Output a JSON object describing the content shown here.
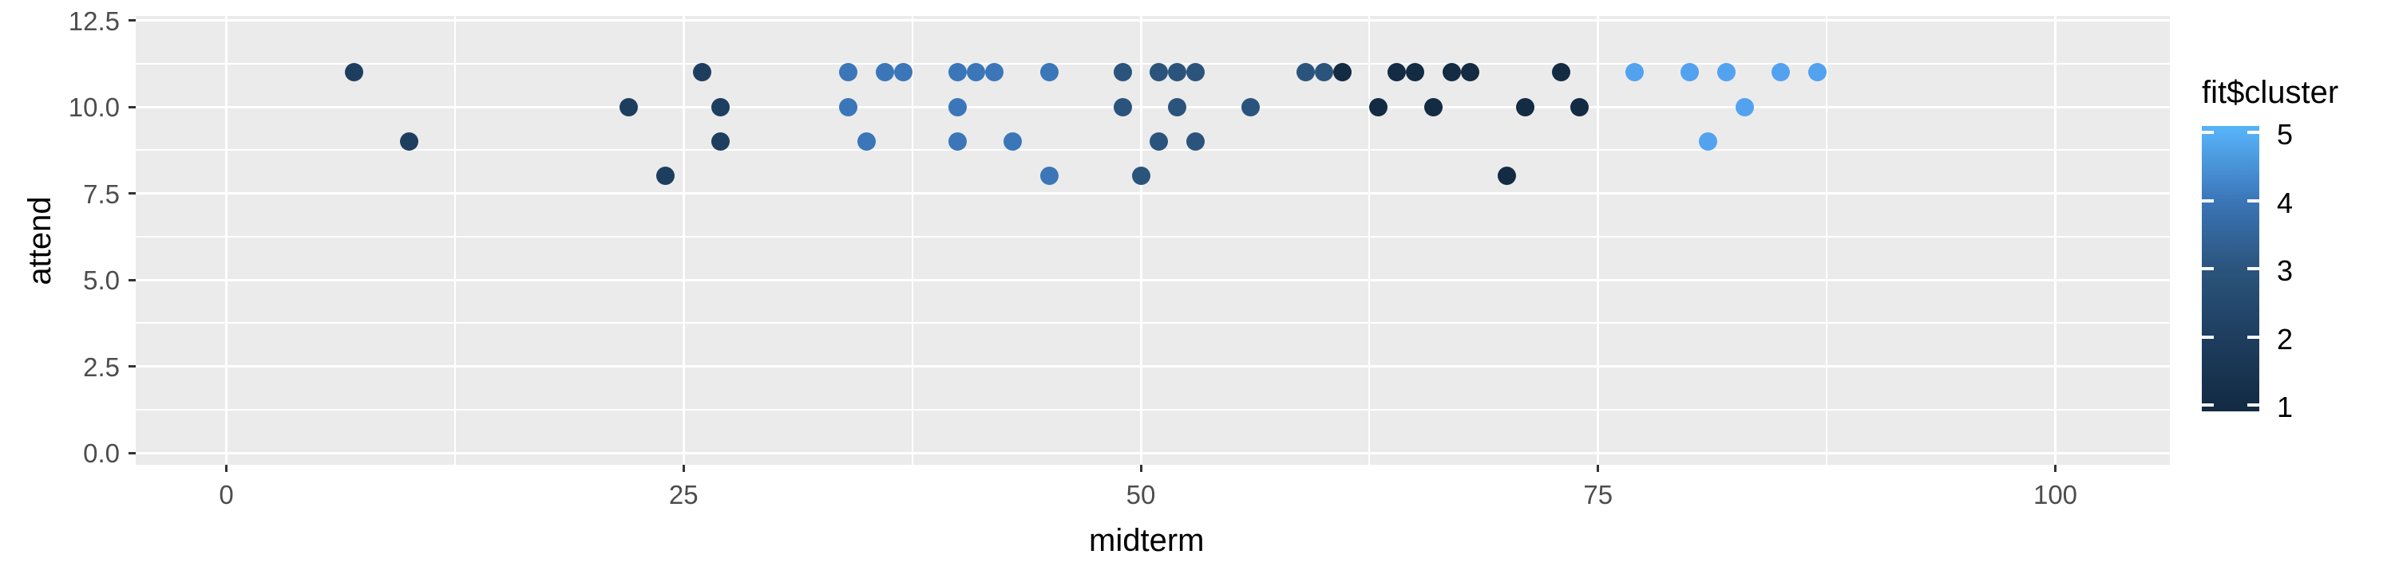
{
  "chart_data": {
    "type": "scatter",
    "title": "",
    "xlabel": "midterm",
    "ylabel": "attend",
    "x_tick_labels": [
      "0",
      "25",
      "50",
      "75",
      "100"
    ],
    "x_tick_values": [
      0,
      25,
      50,
      75,
      100
    ],
    "x_minor_values": [
      12.5,
      37.5,
      62.5,
      87.5
    ],
    "y_tick_labels": [
      "0.0",
      "2.5",
      "5.0",
      "7.5",
      "10.0",
      "12.5"
    ],
    "y_tick_values": [
      0,
      2.5,
      5,
      7.5,
      10,
      12.5
    ],
    "y_minor_values": [
      1.25,
      3.75,
      6.25,
      8.75,
      11.25
    ],
    "xlim": [
      -5,
      106.3
    ],
    "ylim": [
      -0.35,
      12.63
    ],
    "grid": "on",
    "panel_background": "#EBEBEB",
    "gridline_color": "#ffffff",
    "legend_position": "right",
    "series": [
      {
        "name": "cluster-1",
        "cluster_value": 1,
        "color": "#132B43",
        "points": [
          [
            61,
            11
          ],
          [
            64,
            11
          ],
          [
            65,
            11
          ],
          [
            67,
            11
          ],
          [
            68,
            11
          ],
          [
            73,
            11
          ],
          [
            63,
            10
          ],
          [
            66,
            10
          ],
          [
            71,
            10
          ],
          [
            74,
            10
          ],
          [
            70,
            8
          ]
        ]
      },
      {
        "name": "cluster-2",
        "cluster_value": 2,
        "color": "#1E3E5F",
        "points": [
          [
            7,
            11
          ],
          [
            26,
            11
          ],
          [
            22,
            10
          ],
          [
            27,
            10
          ],
          [
            10,
            9
          ],
          [
            27,
            9
          ],
          [
            24,
            8
          ]
        ]
      },
      {
        "name": "cluster-3",
        "cluster_value": 3,
        "color": "#2B547D",
        "points": [
          [
            49,
            11
          ],
          [
            51,
            11
          ],
          [
            52,
            11
          ],
          [
            53,
            11
          ],
          [
            59,
            11
          ],
          [
            60,
            11
          ],
          [
            49,
            10
          ],
          [
            52,
            10
          ],
          [
            56,
            10
          ],
          [
            51,
            9
          ],
          [
            53,
            9
          ],
          [
            50,
            8
          ]
        ]
      },
      {
        "name": "cluster-4",
        "cluster_value": 4,
        "color": "#3B76B8",
        "points": [
          [
            34,
            11
          ],
          [
            36,
            11
          ],
          [
            37,
            11
          ],
          [
            40,
            11
          ],
          [
            41,
            11
          ],
          [
            42,
            11
          ],
          [
            45,
            11
          ],
          [
            34,
            10
          ],
          [
            40,
            10
          ],
          [
            35,
            9
          ],
          [
            40,
            9
          ],
          [
            43,
            9
          ],
          [
            45,
            8
          ]
        ]
      },
      {
        "name": "cluster-5",
        "cluster_value": 5,
        "color": "#53A2F0",
        "points": [
          [
            77,
            11
          ],
          [
            80,
            11
          ],
          [
            82,
            11
          ],
          [
            85,
            11
          ],
          [
            87,
            11
          ],
          [
            83,
            10
          ],
          [
            81,
            9
          ]
        ]
      }
    ],
    "legend": {
      "title": "fit$cluster",
      "tick_labels": [
        "5",
        "4",
        "3",
        "2",
        "1"
      ],
      "tick_values": [
        5,
        4,
        3,
        2,
        1
      ],
      "gradient_low": "#132B43",
      "gradient_mid_colors": [
        "#1E3E5F",
        "#2B547D",
        "#3B76B8"
      ],
      "gradient_high": "#56B1F7"
    }
  }
}
